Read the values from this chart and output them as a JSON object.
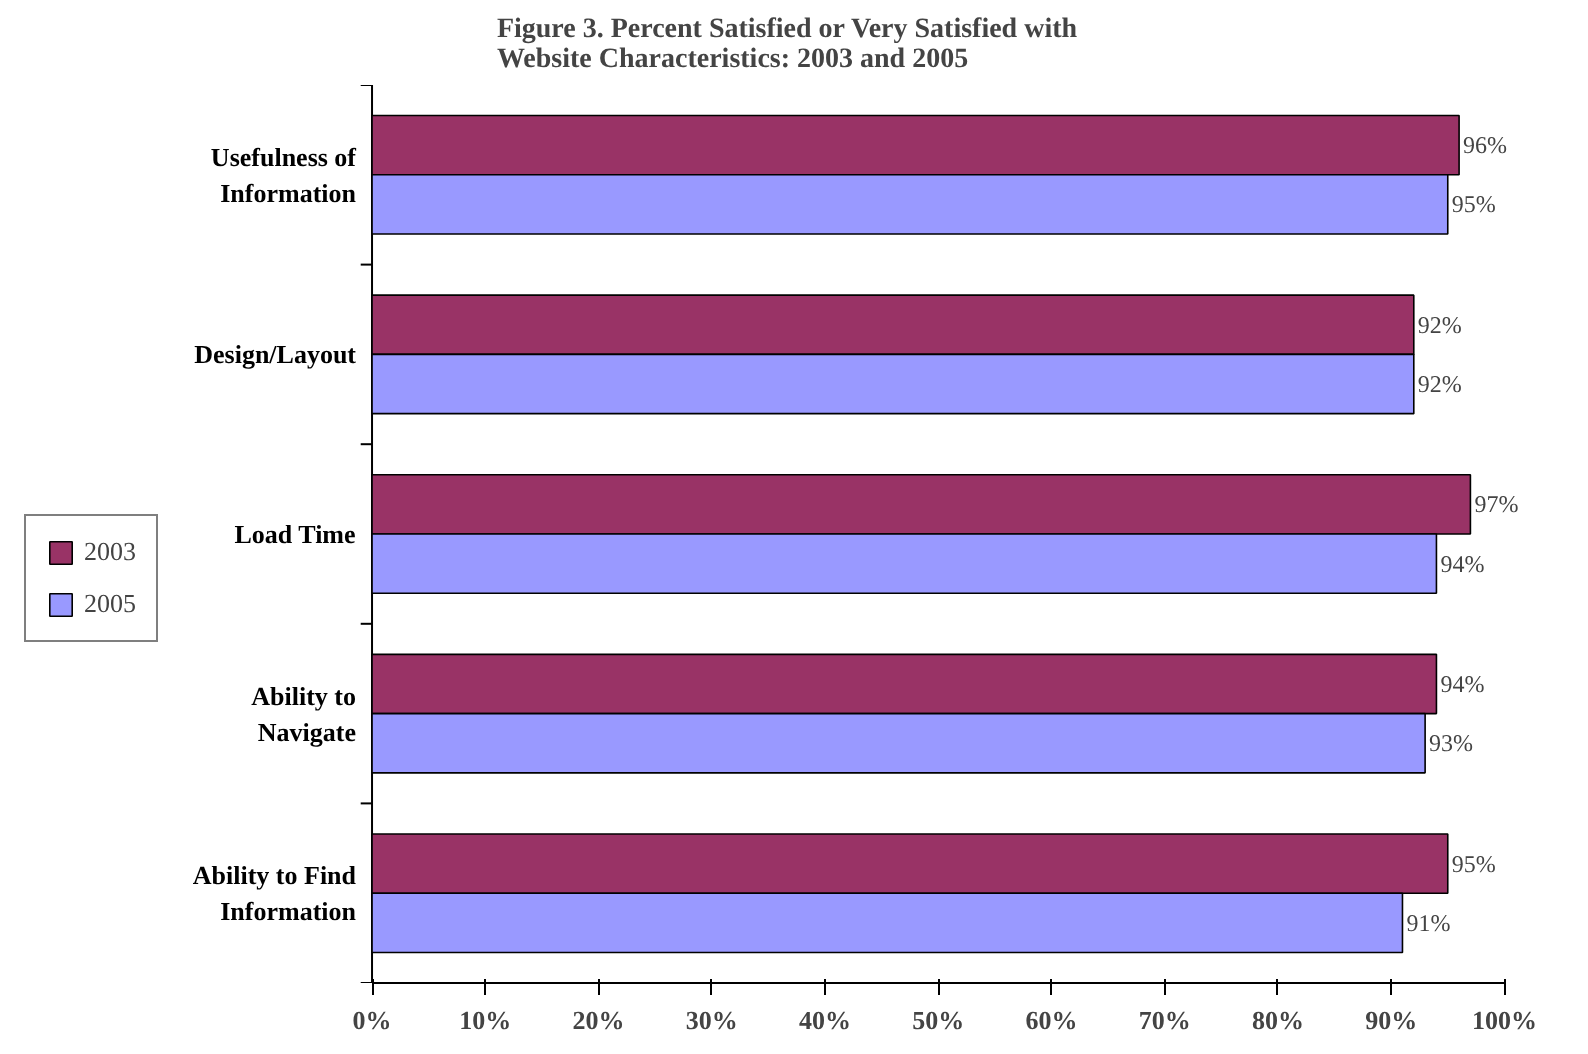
{
  "chart_data": {
    "type": "bar",
    "orientation": "horizontal",
    "title": "Figure 3.  Percent Satisfied or Very Satisfied with Website Characteristics: 2003 and 2005",
    "categories": [
      "Usefulness of Information",
      "Design/Layout",
      "Load Time",
      "Ability to Navigate",
      "Ability to Find Information"
    ],
    "series": [
      {
        "name": "2003",
        "color": "#993366",
        "values": [
          96,
          92,
          97,
          94,
          95
        ],
        "value_labels": [
          "96%",
          "92%",
          "97%",
          "94%",
          "95%"
        ]
      },
      {
        "name": "2005",
        "color": "#9999ff",
        "values": [
          95,
          92,
          94,
          93,
          91
        ],
        "value_labels": [
          "95%",
          "92%",
          "94%",
          "93%",
          "91%"
        ]
      }
    ],
    "xlim": [
      0,
      100
    ],
    "xticks": [
      {
        "value": 0,
        "label": "0%"
      },
      {
        "value": 10,
        "label": "10%"
      },
      {
        "value": 20,
        "label": "20%"
      },
      {
        "value": 30,
        "label": "30%"
      },
      {
        "value": 40,
        "label": "40%"
      },
      {
        "value": 50,
        "label": "50%"
      },
      {
        "value": 60,
        "label": "60%"
      },
      {
        "value": 70,
        "label": "70%"
      },
      {
        "value": 80,
        "label": "80%"
      },
      {
        "value": 90,
        "label": "90%"
      },
      {
        "value": 100,
        "label": "100%"
      }
    ],
    "grid": false,
    "legend": "left"
  }
}
